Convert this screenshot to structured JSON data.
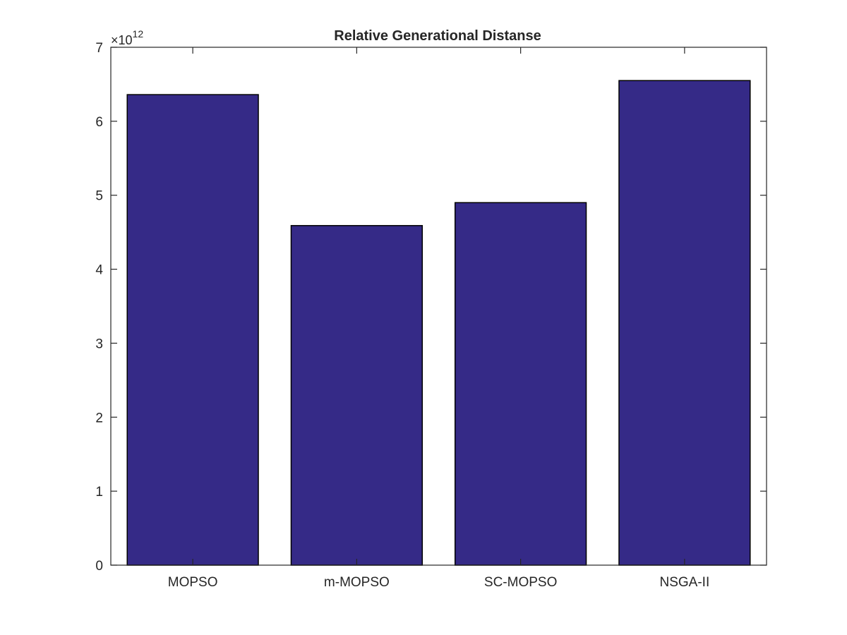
{
  "chart_data": {
    "type": "bar",
    "title": "Relative Generational Distanse",
    "xlabel": "",
    "ylabel": "",
    "categories": [
      "MOPSO",
      "m-MOPSO",
      "SC-MOPSO",
      "NSGA-II"
    ],
    "values": [
      6360000000000.0,
      4590000000000.0,
      4900000000000.0,
      6550000000000.0
    ],
    "ylim": [
      0,
      7000000000000.0
    ],
    "yticks": [
      0,
      1,
      2,
      3,
      4,
      5,
      6,
      7
    ],
    "ytick_labels": [
      "0",
      "1",
      "2",
      "3",
      "4",
      "5",
      "6",
      "7"
    ],
    "exponent_label": {
      "base": "×10",
      "power": "12"
    },
    "grid": false,
    "legend": "none",
    "colors": {
      "bar_fill": "#352a87",
      "bar_edge": "#000000",
      "axis": "#262626"
    }
  }
}
